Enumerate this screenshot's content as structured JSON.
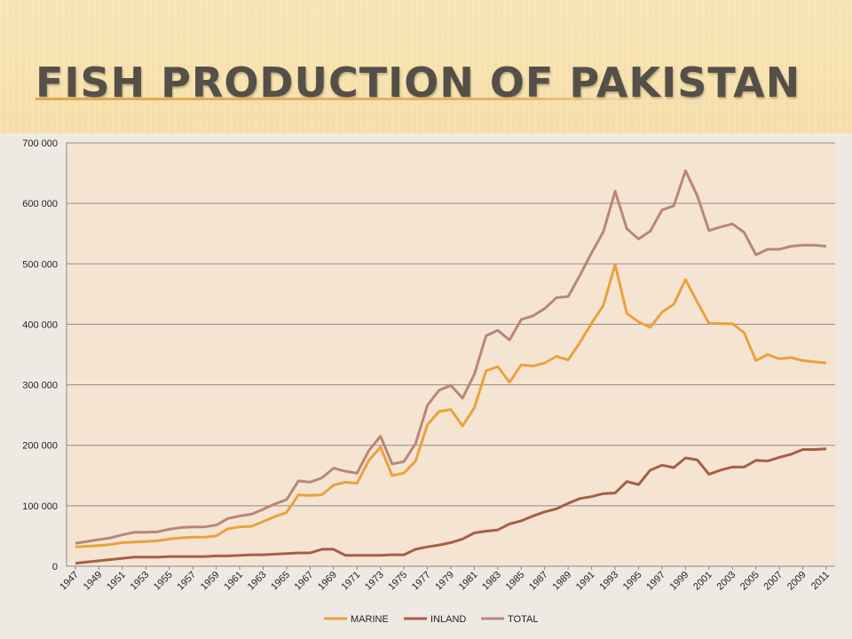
{
  "title": "FISH PRODUCTION OF PAKISTAN",
  "colors": {
    "marine": "#e9a23b",
    "inland": "#a65f45",
    "total": "#b8877a",
    "plot_bg": "#f6e4d3"
  },
  "chart_data": {
    "type": "line",
    "title": "",
    "xlabel": "",
    "ylabel": "",
    "ylim": [
      0,
      700000
    ],
    "yticks": [
      0,
      100000,
      200000,
      300000,
      400000,
      500000,
      600000,
      700000
    ],
    "ytick_labels": [
      "0",
      "100 000",
      "200 000",
      "300 000",
      "400 000",
      "500 000",
      "600 000",
      "700 000"
    ],
    "x": [
      1947,
      1948,
      1949,
      1950,
      1951,
      1952,
      1953,
      1954,
      1955,
      1956,
      1957,
      1958,
      1959,
      1960,
      1961,
      1962,
      1963,
      1964,
      1965,
      1966,
      1967,
      1968,
      1969,
      1970,
      1971,
      1972,
      1973,
      1974,
      1975,
      1976,
      1977,
      1978,
      1979,
      1980,
      1981,
      1982,
      1983,
      1984,
      1985,
      1986,
      1987,
      1988,
      1989,
      1990,
      1991,
      1992,
      1993,
      1994,
      1995,
      1996,
      1997,
      1998,
      1999,
      2000,
      2001,
      2002,
      2003,
      2004,
      2005,
      2006,
      2007,
      2008,
      2009,
      2010,
      2011
    ],
    "xtick_labels": [
      "1947",
      "1949",
      "1951",
      "1953",
      "1955",
      "1957",
      "1959",
      "1961",
      "1963",
      "1965",
      "1967",
      "1969",
      "1971",
      "1973",
      "1975",
      "1977",
      "1979",
      "1981",
      "1983",
      "1985",
      "1987",
      "1989",
      "1991",
      "1993",
      "1995",
      "1997",
      "1999",
      "2001",
      "2003",
      "2005",
      "2007",
      "2009",
      "2011"
    ],
    "legend_position": "bottom",
    "grid": true,
    "series": [
      {
        "name": "MARINE",
        "color": "#e9a23b",
        "values": [
          32000,
          33000,
          34000,
          36000,
          39000,
          40000,
          41000,
          42000,
          45000,
          47000,
          48000,
          48000,
          50000,
          62000,
          65000,
          66000,
          74000,
          82000,
          89000,
          118000,
          117000,
          118000,
          134000,
          139000,
          137000,
          175000,
          197000,
          150000,
          154000,
          174000,
          234000,
          256000,
          259000,
          232000,
          262000,
          323000,
          330000,
          304000,
          333000,
          331000,
          336000,
          347000,
          341000,
          370000,
          402000,
          431000,
          499000,
          418000,
          404000,
          395000,
          420000,
          433000,
          474000,
          437000,
          402000,
          401000,
          401000,
          386000,
          340000,
          350000,
          343000,
          345000,
          340000,
          338000,
          336000
        ]
      },
      {
        "name": "INLAND",
        "color": "#a65f45",
        "values": [
          5000,
          7000,
          9000,
          11000,
          13000,
          15000,
          15000,
          15000,
          16000,
          16000,
          16000,
          16000,
          17000,
          17000,
          18000,
          19000,
          19000,
          20000,
          21000,
          22000,
          22000,
          28000,
          28000,
          18000,
          18000,
          18000,
          18000,
          19000,
          19000,
          28000,
          32000,
          35000,
          39000,
          45000,
          55000,
          58000,
          60000,
          70000,
          75000,
          83000,
          90000,
          95000,
          104000,
          112000,
          115000,
          120000,
          121000,
          140000,
          135000,
          159000,
          167000,
          163000,
          179000,
          176000,
          152000,
          159000,
          164000,
          164000,
          175000,
          174000,
          180000,
          185000,
          193000,
          193000,
          194000
        ]
      },
      {
        "name": "TOTAL",
        "color": "#b8877a",
        "values": [
          38000,
          41000,
          44000,
          47000,
          52000,
          56000,
          56000,
          57000,
          61000,
          64000,
          65000,
          65000,
          68000,
          79000,
          83000,
          86000,
          94000,
          103000,
          110000,
          141000,
          139000,
          146000,
          162000,
          157000,
          154000,
          191000,
          215000,
          169000,
          173000,
          203000,
          266000,
          291000,
          299000,
          278000,
          317000,
          381000,
          390000,
          374000,
          408000,
          414000,
          426000,
          444000,
          446000,
          481000,
          518000,
          553000,
          620000,
          558000,
          541000,
          554000,
          589000,
          596000,
          654000,
          613000,
          555000,
          561000,
          566000,
          552000,
          515000,
          524000,
          524000,
          529000,
          531000,
          531000,
          529000
        ]
      }
    ]
  }
}
